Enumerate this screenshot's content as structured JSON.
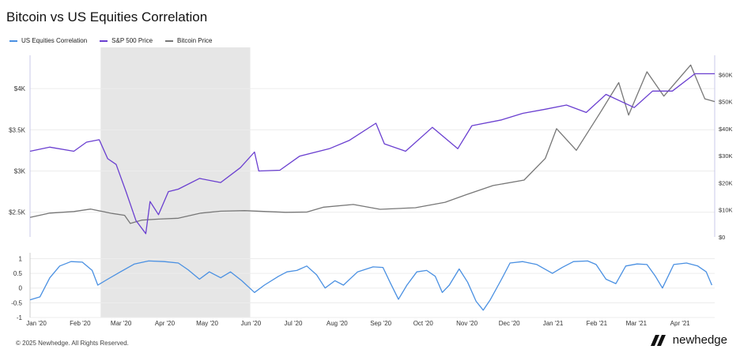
{
  "title": "Bitcoin vs US Equities Correlation",
  "legend": [
    {
      "label": "US Equities Correlation",
      "color": "#4a90e2"
    },
    {
      "label": "S&P 500 Price",
      "color": "#6a3fd0"
    },
    {
      "label": "Bitcoin Price",
      "color": "#777777"
    }
  ],
  "footer": "© 2025 Newhedge. All Rights Reserved.",
  "brand": "newhedge",
  "chart_data": [
    {
      "type": "line",
      "x_tick_labels": [
        "Jan '20",
        "Feb '20",
        "Mar '20",
        "Apr '20",
        "May '20",
        "Jun '20",
        "Jul '20",
        "Aug '20",
        "Sep '20",
        "Oct '20",
        "Nov '20",
        "Dec '20",
        "Jan '21",
        "Feb '21",
        "Mar '21",
        "Apr '21"
      ],
      "left_axis": {
        "tick_labels": [
          "$4K",
          "$3.5K",
          "$3K",
          "$2.5K"
        ],
        "ticks": [
          4000,
          3500,
          3000,
          2500
        ],
        "range": [
          2200,
          4500
        ]
      },
      "right_axis": {
        "tick_labels": [
          "$60K",
          "$50K",
          "$40K",
          "$30K",
          "$20K",
          "$10K",
          "$0"
        ],
        "ticks": [
          60000,
          50000,
          40000,
          30000,
          20000,
          10000,
          0
        ],
        "range": [
          0,
          70000
        ]
      },
      "highlight": {
        "start": "2020-02-20",
        "end": "2020-06-05"
      },
      "series": [
        {
          "name": "S&P 500 Price",
          "axis": "left",
          "points": [
            [
              "2020-01-01",
              3240
            ],
            [
              "2020-01-15",
              3290
            ],
            [
              "2020-02-01",
              3240
            ],
            [
              "2020-02-10",
              3350
            ],
            [
              "2020-02-19",
              3380
            ],
            [
              "2020-02-25",
              3150
            ],
            [
              "2020-03-02",
              3080
            ],
            [
              "2020-03-09",
              2750
            ],
            [
              "2020-03-16",
              2400
            ],
            [
              "2020-03-23",
              2240
            ],
            [
              "2020-03-26",
              2630
            ],
            [
              "2020-04-01",
              2470
            ],
            [
              "2020-04-08",
              2750
            ],
            [
              "2020-04-15",
              2780
            ],
            [
              "2020-04-30",
              2910
            ],
            [
              "2020-05-15",
              2860
            ],
            [
              "2020-05-29",
              3040
            ],
            [
              "2020-06-08",
              3230
            ],
            [
              "2020-06-11",
              3000
            ],
            [
              "2020-06-26",
              3010
            ],
            [
              "2020-07-10",
              3180
            ],
            [
              "2020-07-31",
              3270
            ],
            [
              "2020-08-14",
              3370
            ],
            [
              "2020-09-02",
              3580
            ],
            [
              "2020-09-08",
              3330
            ],
            [
              "2020-09-23",
              3240
            ],
            [
              "2020-10-12",
              3530
            ],
            [
              "2020-10-30",
              3270
            ],
            [
              "2020-11-09",
              3550
            ],
            [
              "2020-11-30",
              3620
            ],
            [
              "2020-12-15",
              3700
            ],
            [
              "2020-12-31",
              3750
            ],
            [
              "2021-01-15",
              3800
            ],
            [
              "2021-01-29",
              3710
            ],
            [
              "2021-02-12",
              3930
            ],
            [
              "2021-03-04",
              3770
            ],
            [
              "2021-03-17",
              3970
            ],
            [
              "2021-03-31",
              3970
            ],
            [
              "2021-04-16",
              4180
            ],
            [
              "2021-04-30",
              4180
            ]
          ]
        },
        {
          "name": "Bitcoin Price",
          "axis": "right",
          "points": [
            [
              "2020-01-01",
              7200
            ],
            [
              "2020-01-15",
              8800
            ],
            [
              "2020-02-01",
              9400
            ],
            [
              "2020-02-13",
              10300
            ],
            [
              "2020-02-28",
              8700
            ],
            [
              "2020-03-08",
              8000
            ],
            [
              "2020-03-12",
              5000
            ],
            [
              "2020-03-20",
              6200
            ],
            [
              "2020-04-01",
              6600
            ],
            [
              "2020-04-15",
              6900
            ],
            [
              "2020-05-01",
              8800
            ],
            [
              "2020-05-15",
              9500
            ],
            [
              "2020-06-01",
              9700
            ],
            [
              "2020-06-30",
              9100
            ],
            [
              "2020-07-15",
              9200
            ],
            [
              "2020-07-27",
              11000
            ],
            [
              "2020-08-17",
              12000
            ],
            [
              "2020-09-05",
              10200
            ],
            [
              "2020-09-30",
              10800
            ],
            [
              "2020-10-21",
              12800
            ],
            [
              "2020-11-05",
              15600
            ],
            [
              "2020-11-24",
              19000
            ],
            [
              "2020-12-16",
              21000
            ],
            [
              "2020-12-31",
              29000
            ],
            [
              "2021-01-08",
              40000
            ],
            [
              "2021-01-22",
              32000
            ],
            [
              "2021-02-08",
              46000
            ],
            [
              "2021-02-21",
              57000
            ],
            [
              "2021-02-28",
              45000
            ],
            [
              "2021-03-13",
              61000
            ],
            [
              "2021-03-25",
              52000
            ],
            [
              "2021-04-13",
              63500
            ],
            [
              "2021-04-23",
              51000
            ],
            [
              "2021-04-30",
              50000
            ]
          ]
        },
        {
          "name": "US Equities Correlation",
          "axis": "lower",
          "range": [
            -1,
            1.2
          ],
          "tick_labels": [
            "1",
            "0.5",
            "0",
            "-0.5",
            "-1"
          ],
          "ticks": [
            1,
            0.5,
            0,
            -0.5,
            -1
          ],
          "points": [
            [
              "2020-01-01",
              -0.4
            ],
            [
              "2020-01-08",
              -0.3
            ],
            [
              "2020-01-15",
              0.35
            ],
            [
              "2020-01-22",
              0.75
            ],
            [
              "2020-01-30",
              0.9
            ],
            [
              "2020-02-07",
              0.88
            ],
            [
              "2020-02-14",
              0.6
            ],
            [
              "2020-02-18",
              0.1
            ],
            [
              "2020-02-25",
              0.3
            ],
            [
              "2020-03-05",
              0.55
            ],
            [
              "2020-03-15",
              0.82
            ],
            [
              "2020-03-25",
              0.92
            ],
            [
              "2020-04-05",
              0.9
            ],
            [
              "2020-04-15",
              0.85
            ],
            [
              "2020-04-22",
              0.62
            ],
            [
              "2020-04-30",
              0.3
            ],
            [
              "2020-05-07",
              0.55
            ],
            [
              "2020-05-15",
              0.35
            ],
            [
              "2020-05-22",
              0.55
            ],
            [
              "2020-05-30",
              0.25
            ],
            [
              "2020-06-08",
              -0.15
            ],
            [
              "2020-06-15",
              0.1
            ],
            [
              "2020-06-25",
              0.4
            ],
            [
              "2020-07-01",
              0.55
            ],
            [
              "2020-07-08",
              0.6
            ],
            [
              "2020-07-15",
              0.75
            ],
            [
              "2020-07-22",
              0.45
            ],
            [
              "2020-07-28",
              0.0
            ],
            [
              "2020-08-04",
              0.25
            ],
            [
              "2020-08-10",
              0.1
            ],
            [
              "2020-08-20",
              0.55
            ],
            [
              "2020-08-31",
              0.72
            ],
            [
              "2020-09-07",
              0.7
            ],
            [
              "2020-09-12",
              0.2
            ],
            [
              "2020-09-18",
              -0.38
            ],
            [
              "2020-09-24",
              0.1
            ],
            [
              "2020-10-01",
              0.55
            ],
            [
              "2020-10-08",
              0.6
            ],
            [
              "2020-10-14",
              0.4
            ],
            [
              "2020-10-19",
              -0.15
            ],
            [
              "2020-10-24",
              0.1
            ],
            [
              "2020-10-31",
              0.65
            ],
            [
              "2020-11-06",
              0.2
            ],
            [
              "2020-11-12",
              -0.45
            ],
            [
              "2020-11-17",
              -0.75
            ],
            [
              "2020-11-22",
              -0.4
            ],
            [
              "2020-11-30",
              0.3
            ],
            [
              "2020-12-06",
              0.85
            ],
            [
              "2020-12-15",
              0.9
            ],
            [
              "2020-12-25",
              0.8
            ],
            [
              "2021-01-05",
              0.5
            ],
            [
              "2021-01-12",
              0.7
            ],
            [
              "2021-01-20",
              0.9
            ],
            [
              "2021-01-30",
              0.92
            ],
            [
              "2021-02-05",
              0.8
            ],
            [
              "2021-02-12",
              0.3
            ],
            [
              "2021-02-19",
              0.15
            ],
            [
              "2021-02-26",
              0.75
            ],
            [
              "2021-03-06",
              0.82
            ],
            [
              "2021-03-13",
              0.8
            ],
            [
              "2021-03-19",
              0.4
            ],
            [
              "2021-03-24",
              0.0
            ],
            [
              "2021-04-01",
              0.8
            ],
            [
              "2021-04-10",
              0.85
            ],
            [
              "2021-04-18",
              0.75
            ],
            [
              "2021-04-24",
              0.55
            ],
            [
              "2021-04-28",
              0.1
            ]
          ]
        }
      ]
    }
  ]
}
